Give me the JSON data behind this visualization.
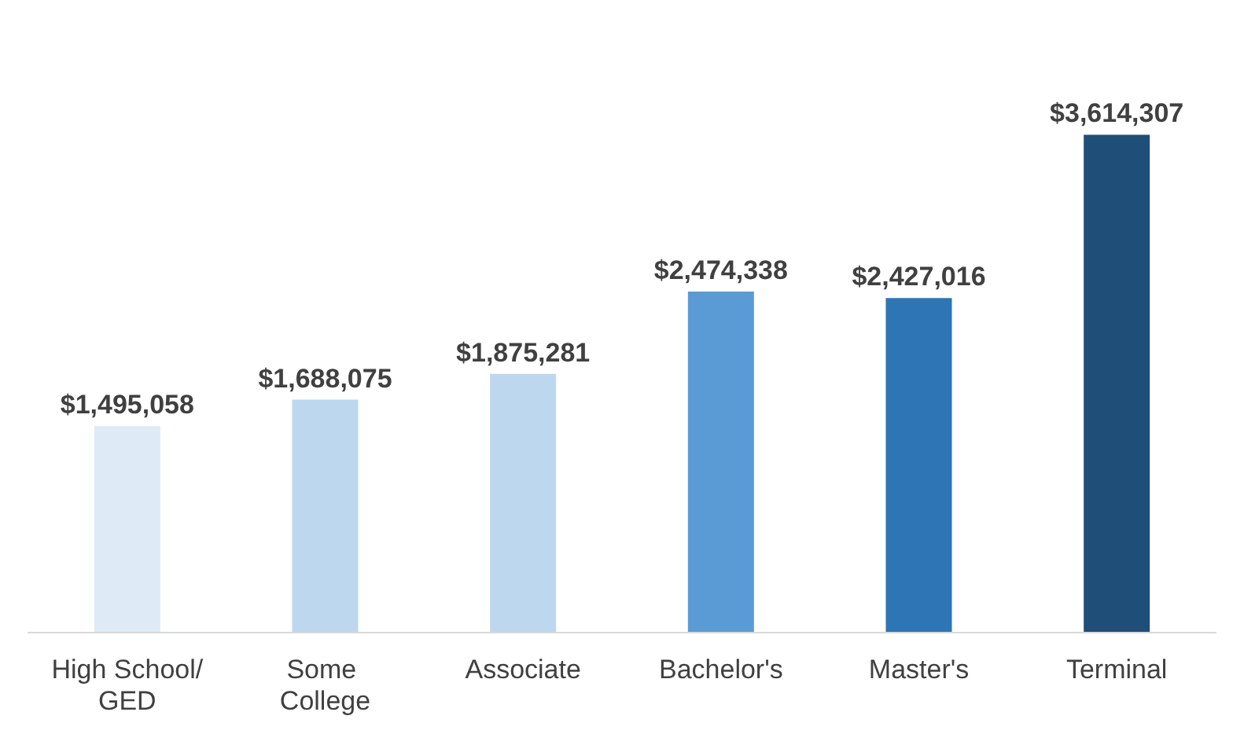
{
  "chart_data": {
    "type": "bar",
    "categories": [
      "High School/GED",
      "Some College",
      "Associate",
      "Bachelor's",
      "Master's",
      "Terminal"
    ],
    "values": [
      1495058,
      1688075,
      1875281,
      2474338,
      2427016,
      3614307
    ],
    "value_labels": [
      "$1,495,058",
      "$1,688,075",
      "$1,875,281",
      "$2,474,338",
      "$2,427,016",
      "$3,614,307"
    ],
    "colors": [
      "#deebf7",
      "#bdd7ee",
      "#bdd7ee",
      "#5b9bd5",
      "#2e75b6",
      "#1f4e79"
    ],
    "tick_labels": "x"
  }
}
